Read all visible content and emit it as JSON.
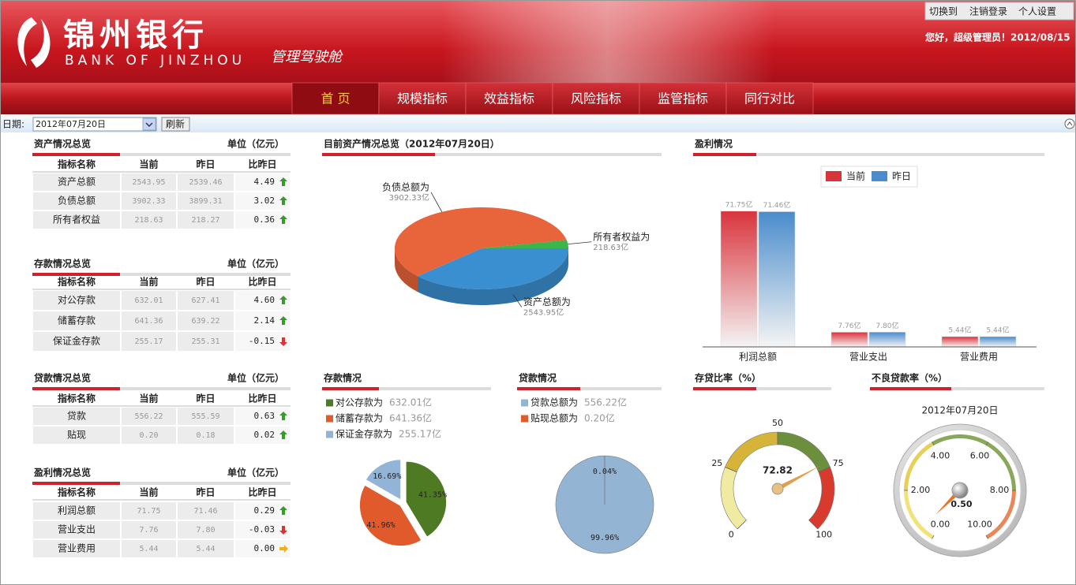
{
  "header": {
    "logo_cn": "锦州银行",
    "logo_en": "BANK OF JINZHOU",
    "product": "管理驾驶舱",
    "links": [
      "切换到",
      "注销登录",
      "个人设置"
    ],
    "greeting": "您好，超级管理员！2012/08/15"
  },
  "nav": [
    "首 页",
    "规模指标",
    "效益指标",
    "风险指标",
    "监管指标",
    "同行对比"
  ],
  "toolbar": {
    "date_label": "日期:",
    "date": "2012年07月20日",
    "refresh": "刷新"
  },
  "tables": [
    {
      "title": "资产情况总览",
      "unit": "单位（亿元）",
      "columns": [
        "指标名称",
        "当前",
        "昨日",
        "比昨日"
      ],
      "rows": [
        [
          "资产总额",
          "2543.95",
          "2539.46",
          "4.49"
        ],
        [
          "负债总额",
          "3902.33",
          "3899.31",
          "3.02"
        ],
        [
          "所有者权益",
          "218.63",
          "218.27",
          "0.36"
        ]
      ]
    },
    {
      "title": "存款情况总览",
      "unit": "单位（亿元）",
      "columns": [
        "指标名称",
        "当前",
        "昨日",
        "比昨日"
      ],
      "rows": [
        [
          "对公存款",
          "632.01",
          "627.41",
          "4.60"
        ],
        [
          "储蓄存款",
          "641.36",
          "639.22",
          "2.14"
        ],
        [
          "保证金存款",
          "255.17",
          "255.31",
          "-0.15"
        ]
      ]
    },
    {
      "title": "贷款情况总览",
      "unit": "单位（亿元）",
      "columns": [
        "指标名称",
        "当前",
        "昨日",
        "比昨日"
      ],
      "rows": [
        [
          "贷款",
          "556.22",
          "555.59",
          "0.63"
        ],
        [
          "贴现",
          "0.20",
          "0.18",
          "0.02"
        ]
      ]
    },
    {
      "title": "盈利情况总览",
      "unit": "单位（亿元）",
      "columns": [
        "指标名称",
        "当前",
        "昨日",
        "比昨日"
      ],
      "rows": [
        [
          "利润总额",
          "71.75",
          "71.46",
          "0.29"
        ],
        [
          "营业支出",
          "7.76",
          "7.80",
          "-0.03"
        ],
        [
          "营业费用",
          "5.44",
          "5.44",
          "0.00"
        ]
      ]
    }
  ],
  "chart_data": [
    {
      "type": "pie3d",
      "title": "目前资产情况总览（2012年07月20日）",
      "categories": [
        "资产总额为",
        "负债总额为",
        "所有者权益为"
      ],
      "values": [
        2543.95,
        3902.33,
        218.63
      ],
      "value_labels": [
        "2543.95亿",
        "3902.33亿",
        "218.63亿"
      ],
      "colors": [
        "#3a8fd0",
        "#e8643a",
        "#3cb54a"
      ]
    },
    {
      "type": "bar",
      "title": "盈利情况",
      "categories": [
        "利润总额",
        "营业支出",
        "营业费用"
      ],
      "series": [
        {
          "name": "当前",
          "color": "#d9343c",
          "values": [
            71.75,
            7.76,
            5.44
          ],
          "value_labels": [
            "71.75亿",
            "7.76亿",
            "5.44亿"
          ]
        },
        {
          "name": "昨日",
          "color": "#4a8ccc",
          "values": [
            71.46,
            7.8,
            5.44
          ],
          "value_labels": [
            "71.46亿",
            "7.80亿",
            "5.44亿"
          ]
        }
      ],
      "ylim": [
        0,
        80
      ]
    },
    {
      "type": "pie",
      "title": "存款情况",
      "categories": [
        "对公存款为",
        "储蓄存款为",
        "保证金存款为"
      ],
      "legend_labels": [
        "632.01亿",
        "641.36亿",
        "255.17亿"
      ],
      "values": [
        41.35,
        41.96,
        16.69
      ],
      "value_labels": [
        "41.35%",
        "41.96%",
        "16.69%"
      ],
      "colors": [
        "#4e7a24",
        "#e05a2b",
        "#92b4d6"
      ]
    },
    {
      "type": "pie",
      "title": "贷款情况",
      "categories": [
        "贷款总额为",
        "贴现总额为"
      ],
      "legend_labels": [
        "556.22亿",
        "0.20亿"
      ],
      "values": [
        99.96,
        0.04
      ],
      "value_labels": [
        "99.96%",
        "0.04%"
      ],
      "colors": [
        "#94b4d4",
        "#e05a2b"
      ]
    },
    {
      "type": "gauge",
      "title": "存贷比率（%）",
      "value": 72.82,
      "ylim": [
        0,
        100
      ],
      "yticks": [
        0,
        25,
        50,
        75,
        100
      ],
      "colors": [
        "#efeba0",
        "#d6b43a",
        "#6b8f3c",
        "#d83a2e"
      ]
    },
    {
      "type": "gauge",
      "title": "不良贷款率（%）",
      "subtitle": "2012年07月20日",
      "value": 0.5,
      "value_label": "0.50",
      "ylim": [
        0,
        10
      ],
      "yticks": [
        {
          "value": 0,
          "label": "0.00"
        },
        {
          "value": 2,
          "label": "2.00"
        },
        {
          "value": 4,
          "label": "4.00"
        },
        {
          "value": 6,
          "label": "6.00"
        },
        {
          "value": 8,
          "label": "8.00"
        },
        {
          "value": 10,
          "label": "10.00"
        }
      ],
      "colors": [
        "#f2e27a",
        "#e8cf5a",
        "#8aa85a",
        "#8aa85a",
        "#e8885a"
      ]
    }
  ]
}
